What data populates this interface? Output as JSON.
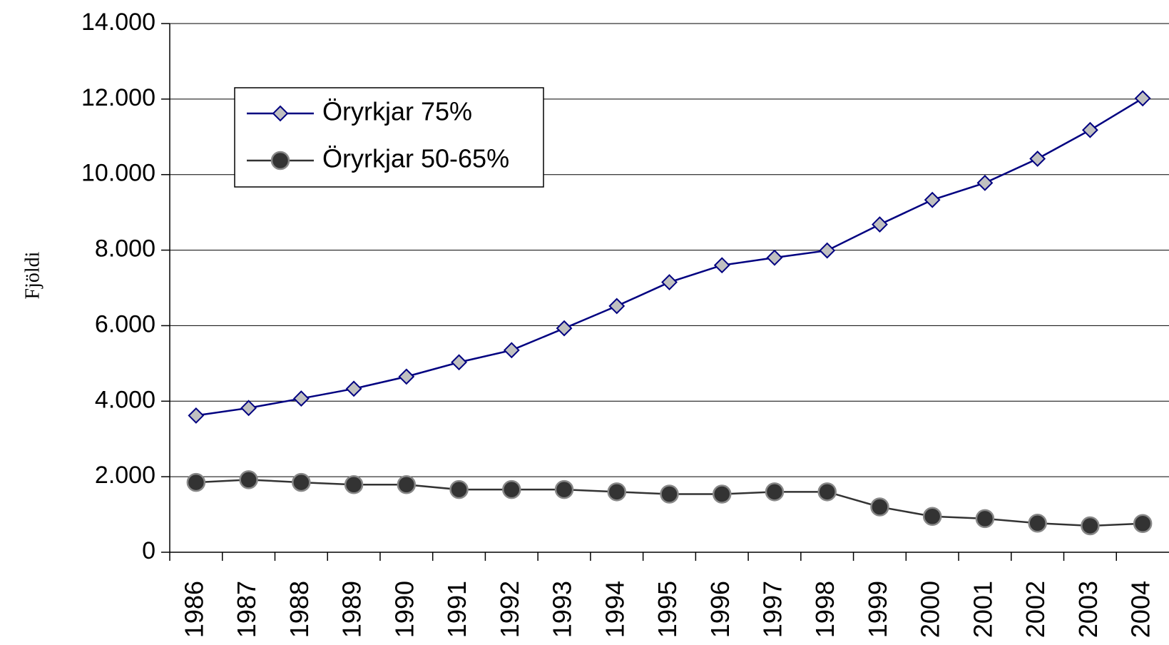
{
  "chart_data": {
    "type": "line",
    "y_label": "Fjöldi",
    "categories": [
      "1986",
      "1987",
      "1988",
      "1989",
      "1990",
      "1991",
      "1992",
      "1993",
      "1994",
      "1995",
      "1996",
      "1997",
      "1998",
      "1999",
      "2000",
      "2001",
      "2002",
      "2003",
      "2004"
    ],
    "series": [
      {
        "name": "Öryrkjar 75%",
        "color": "#000080",
        "marker": "diamond",
        "marker_color": "#c0c0c0",
        "values": [
          3620,
          3820,
          4070,
          4330,
          4650,
          5030,
          5350,
          5930,
          6520,
          7150,
          7600,
          7800,
          7990,
          8680,
          9330,
          9780,
          10420,
          11180,
          12020
        ]
      },
      {
        "name": "Öryrkjar 50-65%",
        "color": "#333333",
        "marker": "circle",
        "marker_color": "#333333",
        "values": [
          1850,
          1920,
          1850,
          1790,
          1790,
          1660,
          1660,
          1660,
          1600,
          1540,
          1540,
          1600,
          1600,
          1200,
          950,
          890,
          770,
          700,
          760
        ]
      }
    ],
    "ylim": [
      0,
      14000
    ],
    "yticks": [
      0,
      {
        "value": 2000,
        "label": "2.000"
      },
      {
        "value": 4000,
        "label": "4.000"
      },
      {
        "value": 6000,
        "label": "6.000"
      },
      {
        "value": 8000,
        "label": "8.000"
      },
      {
        "value": 10000,
        "label": "10.000"
      },
      {
        "value": 12000,
        "label": "12.000"
      },
      {
        "value": 14000,
        "label": "14.000"
      }
    ],
    "grid": true,
    "legend": "top-left"
  }
}
